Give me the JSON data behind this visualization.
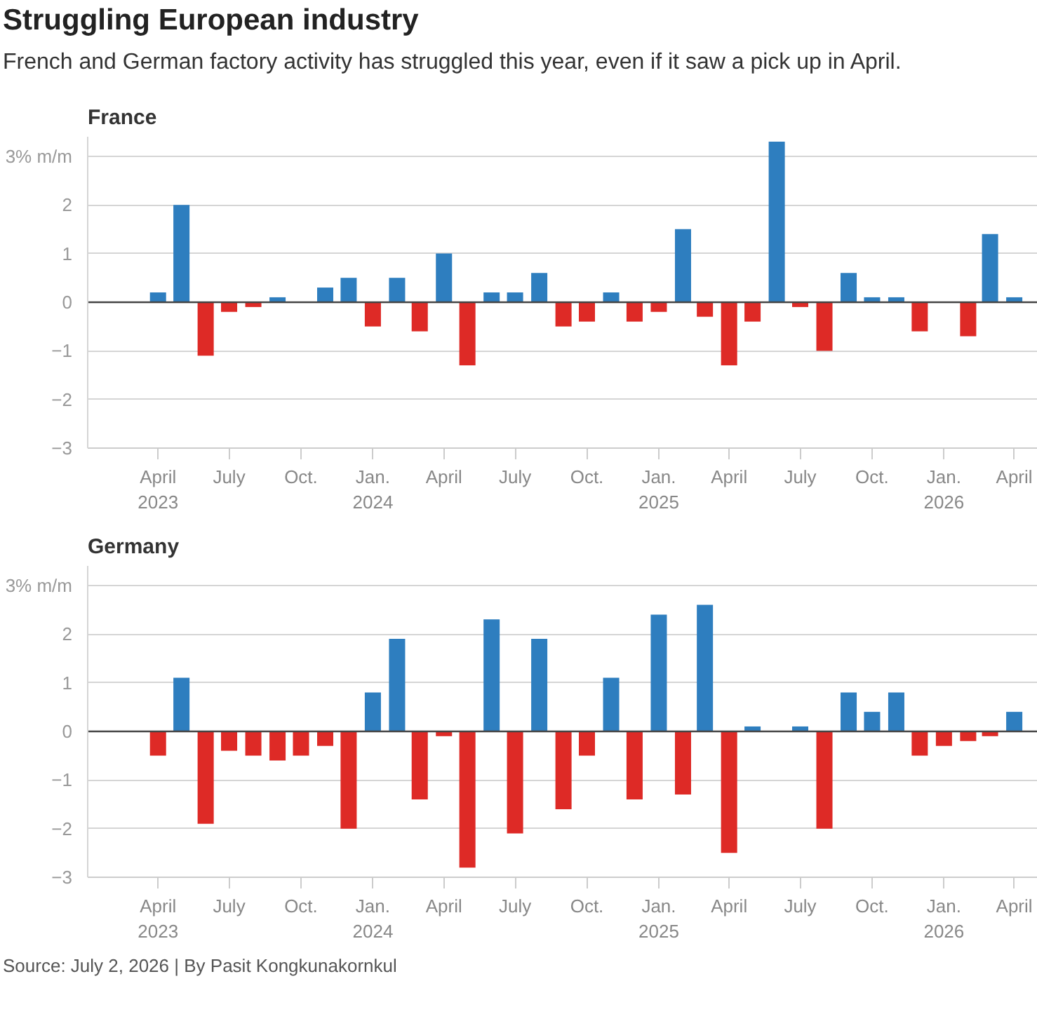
{
  "chart_data": [
    {
      "type": "bar",
      "title": "Struggling European industry",
      "subtitle": "French and German factory activity has struggled this year, even if it saw a pick up in April.",
      "x": [
        "2023-04",
        "2023-05",
        "2023-06",
        "2023-07",
        "2023-08",
        "2023-09",
        "2023-10",
        "2023-11",
        "2023-12",
        "2024-01",
        "2024-02",
        "2024-03",
        "2024-04",
        "2024-05",
        "2024-06",
        "2024-07",
        "2024-08",
        "2024-09",
        "2024-10",
        "2024-11",
        "2024-12",
        "2025-01",
        "2025-02",
        "2025-03",
        "2025-04",
        "2025-05",
        "2025-06",
        "2025-07",
        "2025-08",
        "2025-09",
        "2025-10",
        "2025-11",
        "2025-12",
        "2026-01",
        "2026-02",
        "2026-03",
        "2026-04"
      ],
      "series": [
        {
          "name": "France",
          "values": [
            0.2,
            2.0,
            -1.1,
            -0.2,
            -0.1,
            0.1,
            0,
            0.3,
            0.5,
            -0.5,
            0.5,
            -0.6,
            1.0,
            -1.3,
            0.2,
            0.2,
            0.6,
            -0.5,
            -0.4,
            0.2,
            -0.4,
            -0.2,
            1.5,
            -0.3,
            -1.3,
            -0.4,
            3.3,
            -0.1,
            -1.0,
            0.6,
            0.1,
            0.1,
            -0.6,
            0,
            -0.7,
            1.4,
            0.1
          ],
          "colors": [
            "#2e7ebf",
            "#2e7ebf",
            "#de2a26",
            "#de2a26",
            "#de2a26",
            "#2e7ebf",
            "#2e7ebf",
            "#2e7ebf",
            "#2e7ebf",
            "#de2a26",
            "#2e7ebf",
            "#de2a26",
            "#2e7ebf",
            "#de2a26",
            "#2e7ebf",
            "#2e7ebf",
            "#2e7ebf",
            "#de2a26",
            "#de2a26",
            "#2e7ebf",
            "#de2a26",
            "#de2a26",
            "#2e7ebf",
            "#de2a26",
            "#de2a26",
            "#de2a26",
            "#2e7ebf",
            "#de2a26",
            "#de2a26",
            "#2e7ebf",
            "#2e7ebf",
            "#2e7ebf",
            "#de2a26",
            "#2e7ebf",
            "#de2a26",
            "#2e7ebf",
            "#2e7ebf"
          ]
        }
      ],
      "xlim": [
        "2023-01",
        "2026-05"
      ],
      "xticks": [
        {
          "value": "2023-04",
          "label": "April\n2023"
        },
        {
          "value": "2023-07",
          "label": "July"
        },
        {
          "value": "2023-10",
          "label": "Oct."
        },
        {
          "value": "2024-01",
          "label": "Jan.\n2024"
        },
        {
          "value": "2024-04",
          "label": "April"
        },
        {
          "value": "2024-07",
          "label": "July"
        },
        {
          "value": "2024-10",
          "label": "Oct."
        },
        {
          "value": "2025-01",
          "label": "Jan.\n2025"
        },
        {
          "value": "2025-04",
          "label": "April"
        },
        {
          "value": "2025-07",
          "label": "July"
        },
        {
          "value": "2025-10",
          "label": "Oct."
        },
        {
          "value": "2026-01",
          "label": "Jan.\n2026"
        },
        {
          "value": "2026-04",
          "label": "April"
        }
      ],
      "ylim": [
        -3,
        3.4
      ],
      "yticks": [
        {
          "value": 3,
          "label": "3% m/m"
        },
        2,
        1,
        0,
        {
          "value": -1,
          "label": "−1"
        },
        {
          "value": -2,
          "label": "−2"
        },
        {
          "value": -3,
          "label": "−3"
        }
      ],
      "grid": "y"
    },
    {
      "type": "bar",
      "x": [
        "2023-04",
        "2023-05",
        "2023-06",
        "2023-07",
        "2023-08",
        "2023-09",
        "2023-10",
        "2023-11",
        "2023-12",
        "2024-01",
        "2024-02",
        "2024-03",
        "2024-04",
        "2024-05",
        "2024-06",
        "2024-07",
        "2024-08",
        "2024-09",
        "2024-10",
        "2024-11",
        "2024-12",
        "2025-01",
        "2025-02",
        "2025-03",
        "2025-04",
        "2025-05",
        "2025-06",
        "2025-07",
        "2025-08",
        "2025-09",
        "2025-10",
        "2025-11",
        "2025-12",
        "2026-01",
        "2026-02",
        "2026-03",
        "2026-04"
      ],
      "series": [
        {
          "name": "Germany",
          "values": [
            -0.5,
            1.1,
            -1.9,
            -0.4,
            -0.5,
            -0.6,
            -0.5,
            -0.3,
            -2.0,
            0.8,
            1.9,
            -1.4,
            -0.1,
            -2.8,
            2.3,
            -2.1,
            1.9,
            -1.6,
            -0.5,
            1.1,
            -1.4,
            2.4,
            -1.3,
            2.6,
            -2.5,
            0.1,
            0,
            0.1,
            -2.0,
            0.8,
            0.4,
            0.8,
            -0.5,
            -0.3,
            -0.2,
            -0.1,
            0.4
          ],
          "colors": [
            "#de2a26",
            "#2e7ebf",
            "#de2a26",
            "#de2a26",
            "#de2a26",
            "#de2a26",
            "#de2a26",
            "#de2a26",
            "#de2a26",
            "#2e7ebf",
            "#2e7ebf",
            "#de2a26",
            "#de2a26",
            "#de2a26",
            "#2e7ebf",
            "#de2a26",
            "#2e7ebf",
            "#de2a26",
            "#de2a26",
            "#2e7ebf",
            "#de2a26",
            "#2e7ebf",
            "#de2a26",
            "#2e7ebf",
            "#de2a26",
            "#2e7ebf",
            "#2e7ebf",
            "#2e7ebf",
            "#de2a26",
            "#2e7ebf",
            "#2e7ebf",
            "#2e7ebf",
            "#de2a26",
            "#de2a26",
            "#de2a26",
            "#de2a26",
            "#2e7ebf"
          ]
        }
      ],
      "xlim": [
        "2023-01",
        "2026-05"
      ],
      "xticks": [
        {
          "value": "2023-04",
          "label": "April\n2023"
        },
        {
          "value": "2023-07",
          "label": "July"
        },
        {
          "value": "2023-10",
          "label": "Oct."
        },
        {
          "value": "2024-01",
          "label": "Jan.\n2024"
        },
        {
          "value": "2024-04",
          "label": "April"
        },
        {
          "value": "2024-07",
          "label": "July"
        },
        {
          "value": "2024-10",
          "label": "Oct."
        },
        {
          "value": "2025-01",
          "label": "Jan.\n2025"
        },
        {
          "value": "2025-04",
          "label": "April"
        },
        {
          "value": "2025-07",
          "label": "July"
        },
        {
          "value": "2025-10",
          "label": "Oct."
        },
        {
          "value": "2026-01",
          "label": "Jan.\n2026"
        },
        {
          "value": "2026-04",
          "label": "April"
        }
      ],
      "ylim": [
        -3,
        3.4
      ],
      "yticks": [
        {
          "value": 3,
          "label": "3% m/m"
        },
        2,
        1,
        0,
        {
          "value": -1,
          "label": "−1"
        },
        {
          "value": -2,
          "label": "−2"
        },
        {
          "value": -3,
          "label": "−3"
        }
      ],
      "grid": "y",
      "annotations": [
        "Source: July 2, 2026 | By Pasit Kongkunakornkul"
      ]
    }
  ]
}
